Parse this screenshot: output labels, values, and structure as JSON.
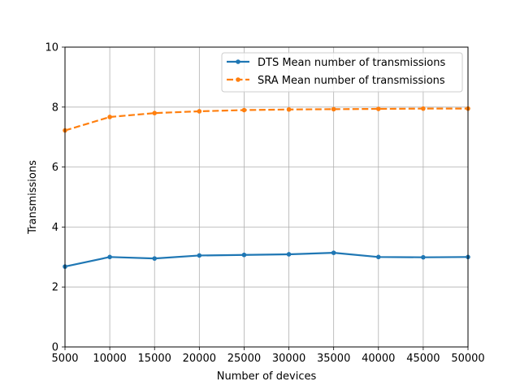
{
  "chart_data": {
    "type": "line",
    "title": "",
    "xlabel": "Number of devices",
    "ylabel": "Transmissions",
    "x": [
      5000,
      10000,
      15000,
      20000,
      25000,
      30000,
      35000,
      40000,
      45000,
      50000
    ],
    "x_ticks": [
      5000,
      10000,
      15000,
      20000,
      25000,
      30000,
      35000,
      40000,
      45000,
      50000
    ],
    "y_ticks": [
      0,
      2,
      4,
      6,
      8,
      10
    ],
    "xlim": [
      5000,
      50000
    ],
    "ylim": [
      0,
      10
    ],
    "grid": true,
    "legend_position": "top-right",
    "series": [
      {
        "name": "DTS Mean number of transmissions",
        "color": "#1f77b4",
        "line_style": "solid",
        "marker": "circle",
        "values": [
          2.68,
          3.0,
          2.95,
          3.05,
          3.07,
          3.09,
          3.14,
          3.0,
          2.99,
          3.0
        ]
      },
      {
        "name": "SRA Mean number of transmissions",
        "color": "#ff7f0e",
        "line_style": "dashed",
        "marker": "circle",
        "values": [
          7.22,
          7.67,
          7.8,
          7.86,
          7.9,
          7.92,
          7.93,
          7.94,
          7.95,
          7.95
        ]
      }
    ]
  }
}
